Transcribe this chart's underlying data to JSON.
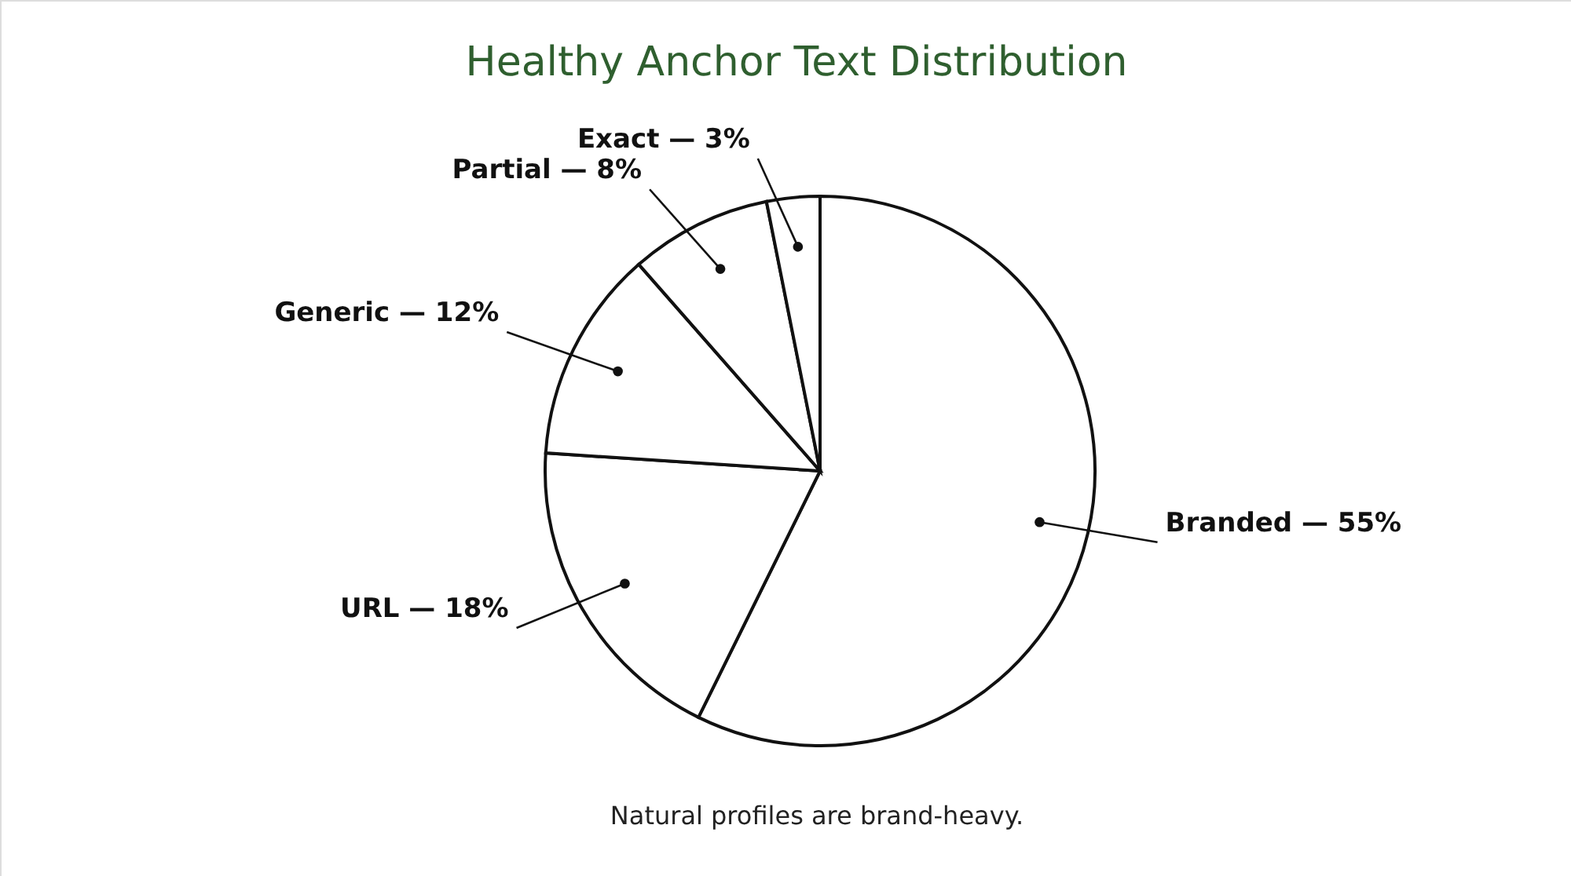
{
  "chart_data": {
    "type": "pie",
    "title": "Healthy Anchor Text Distribution",
    "categories": [
      "Branded",
      "URL",
      "Generic",
      "Partial",
      "Exact"
    ],
    "values": [
      55,
      18,
      12,
      8,
      3
    ],
    "colors": [
      "#ffffff",
      "#ffffff",
      "#ffffff",
      "#ffffff",
      "#ffffff"
    ],
    "value_labels": [
      "— 55%",
      "— 18%",
      "— 12%",
      "— 8%",
      "— 3%"
    ],
    "annotations": [
      "Natural profiles are brand-heavy."
    ]
  }
}
